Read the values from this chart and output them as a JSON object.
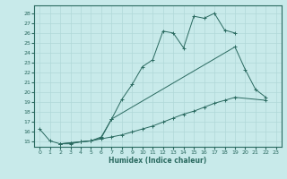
{
  "xlabel": "Humidex (Indice chaleur)",
  "background_color": "#c8eaea",
  "grid_color": "#b0d8d8",
  "line_color": "#2a6a60",
  "ylim": [
    14.5,
    28.8
  ],
  "xlim": [
    -0.5,
    23.5
  ],
  "yticks": [
    15,
    16,
    17,
    18,
    19,
    20,
    21,
    22,
    23,
    24,
    25,
    26,
    27,
    28
  ],
  "xticks": [
    0,
    1,
    2,
    3,
    4,
    5,
    6,
    7,
    8,
    9,
    10,
    11,
    12,
    13,
    14,
    15,
    16,
    17,
    18,
    19,
    20,
    21,
    22,
    23
  ],
  "line1_pts": [
    [
      0,
      16.3
    ],
    [
      1,
      15.1
    ],
    [
      2,
      14.8
    ],
    [
      3,
      14.8
    ],
    [
      4,
      15.0
    ],
    [
      5,
      15.1
    ],
    [
      6,
      15.5
    ],
    [
      7,
      17.3
    ],
    [
      8,
      19.3
    ],
    [
      9,
      20.8
    ],
    [
      10,
      22.6
    ],
    [
      11,
      23.3
    ],
    [
      12,
      26.2
    ],
    [
      13,
      26.0
    ],
    [
      14,
      24.5
    ],
    [
      15,
      27.7
    ],
    [
      16,
      27.5
    ],
    [
      17,
      28.0
    ],
    [
      18,
      26.3
    ],
    [
      19,
      26.0
    ]
  ],
  "line2_pts": [
    [
      2,
      14.8
    ],
    [
      3,
      14.9
    ],
    [
      4,
      15.0
    ],
    [
      5,
      15.1
    ],
    [
      6,
      15.4
    ],
    [
      7,
      17.3
    ],
    [
      19,
      24.6
    ],
    [
      20,
      22.3
    ],
    [
      21,
      20.3
    ],
    [
      22,
      19.5
    ]
  ],
  "line3_pts": [
    [
      2,
      14.8
    ],
    [
      3,
      14.9
    ],
    [
      4,
      15.0
    ],
    [
      5,
      15.1
    ],
    [
      6,
      15.3
    ],
    [
      7,
      15.5
    ],
    [
      8,
      15.7
    ],
    [
      9,
      16.0
    ],
    [
      10,
      16.3
    ],
    [
      11,
      16.6
    ],
    [
      12,
      17.0
    ],
    [
      13,
      17.4
    ],
    [
      14,
      17.8
    ],
    [
      15,
      18.1
    ],
    [
      16,
      18.5
    ],
    [
      17,
      18.9
    ],
    [
      18,
      19.2
    ],
    [
      19,
      19.5
    ],
    [
      22,
      19.2
    ]
  ]
}
